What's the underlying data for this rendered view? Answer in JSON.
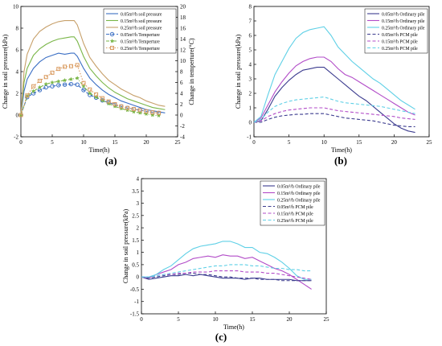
{
  "chart_data": [
    {
      "panel_label": "(a)",
      "type": "line",
      "xlabel": "Time(h)",
      "ylabel": "Change in soil pressure(kPa)",
      "y2label": "Change in temperture(°C)",
      "xlim": [
        0,
        25
      ],
      "ylim": [
        -2,
        10
      ],
      "y2lim": [
        -4,
        20
      ],
      "xticks": [
        0,
        5,
        10,
        15,
        20,
        25
      ],
      "yticks": [
        -2,
        0,
        2,
        4,
        6,
        8,
        10
      ],
      "y2ticks": [
        -4,
        -2,
        0,
        2,
        4,
        6,
        8,
        10,
        12,
        14,
        16,
        18,
        20
      ],
      "legend_position": "top-right",
      "grid": false,
      "series": [
        {
          "name": "0.05m³/h soil pressure",
          "axis": "left",
          "style": "solid",
          "color": "#3b6fc4",
          "x": [
            0,
            0.5,
            1,
            2,
            3,
            4,
            5,
            6,
            7,
            8,
            8.5,
            9,
            10,
            11,
            12,
            13,
            14,
            15,
            16,
            17,
            18,
            19,
            20,
            21,
            22,
            23
          ],
          "y": [
            0,
            2.2,
            3.3,
            4.3,
            4.9,
            5.3,
            5.5,
            5.7,
            5.6,
            5.7,
            5.7,
            5.4,
            4.3,
            3.4,
            2.8,
            2.3,
            1.9,
            1.6,
            1.3,
            1.1,
            0.9,
            0.7,
            0.5,
            0.4,
            0.3,
            0.2
          ]
        },
        {
          "name": "0.15m³/h soil pressure",
          "axis": "left",
          "style": "solid",
          "color": "#7ab648",
          "x": [
            0,
            0.5,
            1,
            2,
            3,
            4,
            5,
            6,
            7,
            8,
            8.5,
            9,
            10,
            11,
            12,
            13,
            14,
            15,
            16,
            17,
            18,
            19,
            20,
            21,
            22,
            23
          ],
          "y": [
            0,
            3.0,
            4.3,
            5.5,
            6.1,
            6.5,
            6.8,
            7.0,
            7.1,
            7.2,
            7.2,
            6.8,
            5.4,
            4.3,
            3.6,
            3.0,
            2.5,
            2.1,
            1.8,
            1.5,
            1.3,
            1.1,
            0.9,
            0.7,
            0.6,
            0.5
          ]
        },
        {
          "name": "0.25m³/h soil pressure",
          "axis": "left",
          "style": "solid",
          "color": "#c7a06a",
          "x": [
            0,
            0.5,
            1,
            2,
            3,
            4,
            5,
            6,
            7,
            8,
            8.5,
            9,
            10,
            11,
            12,
            13,
            14,
            15,
            16,
            17,
            18,
            19,
            20,
            21,
            22,
            23
          ],
          "y": [
            0,
            4.0,
            5.6,
            7.0,
            7.7,
            8.1,
            8.4,
            8.6,
            8.7,
            8.7,
            8.7,
            8.3,
            6.6,
            5.3,
            4.5,
            3.8,
            3.2,
            2.8,
            2.4,
            2.1,
            1.8,
            1.6,
            1.3,
            1.1,
            0.9,
            0.8
          ]
        },
        {
          "name": "0.05m³/h Temperture",
          "axis": "right",
          "style": "dash-circle",
          "color": "#3b6fc4",
          "x": [
            0,
            1,
            2,
            3,
            4,
            5,
            6,
            7,
            8,
            9,
            10,
            11,
            12,
            13,
            14,
            15,
            16,
            17,
            18,
            19,
            20,
            21,
            22
          ],
          "y": [
            0,
            3.3,
            4.0,
            4.6,
            5.1,
            5.3,
            5.5,
            5.6,
            5.7,
            5.6,
            4.6,
            3.7,
            3.2,
            2.7,
            2.3,
            1.9,
            1.6,
            1.3,
            1.1,
            0.9,
            0.7,
            0.5,
            0.4
          ]
        },
        {
          "name": "0.15m³/h Temperture",
          "axis": "right",
          "style": "dash-dot-star",
          "color": "#7ab648",
          "x": [
            0,
            1,
            2,
            3,
            4,
            5,
            6,
            7,
            8,
            9,
            10,
            11,
            12,
            13,
            14,
            15,
            16,
            17,
            18,
            19,
            20,
            21,
            22
          ],
          "y": [
            0,
            3.5,
            4.4,
            5.1,
            5.7,
            6.0,
            6.2,
            6.4,
            6.6,
            6.8,
            5.3,
            4.0,
            3.3,
            2.7,
            2.1,
            1.6,
            1.2,
            0.9,
            0.6,
            0.4,
            0.2,
            0.0,
            -0.1
          ]
        },
        {
          "name": "0.25m³/h Temperture",
          "axis": "right",
          "style": "dot-square",
          "color": "#d99a5e",
          "x": [
            0,
            1,
            2,
            3,
            4,
            5,
            6,
            7,
            8,
            9,
            10,
            11,
            12,
            13,
            14,
            15,
            16,
            17,
            18,
            19,
            20,
            21,
            22
          ],
          "y": [
            0,
            3.6,
            5.3,
            6.3,
            7.0,
            7.8,
            8.5,
            8.9,
            9.0,
            9.2,
            5.9,
            4.7,
            3.8,
            3.1,
            2.5,
            2.0,
            1.6,
            1.3,
            1.1,
            0.9,
            0.7,
            0.5,
            0.4
          ]
        }
      ]
    },
    {
      "panel_label": "(b)",
      "type": "line",
      "xlabel": "Time(h)",
      "ylabel": "Change in soil pressure(kPa)",
      "xlim": [
        0,
        25
      ],
      "ylim": [
        -1,
        8
      ],
      "xticks": [
        0,
        5,
        10,
        15,
        20,
        25
      ],
      "yticks": [
        -1,
        0,
        1,
        2,
        3,
        4,
        5,
        6,
        7,
        8
      ],
      "legend_position": "top-right",
      "grid": false,
      "series": [
        {
          "name": "0.05m³/h Ordinary pile",
          "style": "solid",
          "color": "#3c3c8f",
          "x": [
            0,
            1,
            2,
            3,
            4,
            5,
            6,
            7,
            8,
            9,
            10,
            11,
            12,
            13,
            14,
            15,
            16,
            17,
            18,
            19,
            20,
            21,
            22,
            23
          ],
          "y": [
            0,
            0.1,
            0.9,
            1.8,
            2.4,
            2.9,
            3.3,
            3.6,
            3.7,
            3.8,
            3.8,
            3.4,
            3.0,
            2.6,
            2.2,
            1.8,
            1.5,
            1.1,
            0.7,
            0.3,
            -0.1,
            -0.4,
            -0.6,
            -0.7
          ]
        },
        {
          "name": "0.15m³/h Ordinary pile",
          "style": "solid",
          "color": "#b24cc8",
          "x": [
            0,
            1,
            2,
            3,
            4,
            5,
            6,
            7,
            8,
            9,
            10,
            11,
            12,
            13,
            14,
            15,
            16,
            17,
            18,
            19,
            20,
            21,
            22,
            23
          ],
          "y": [
            0,
            0.3,
            1.2,
            2.1,
            2.8,
            3.4,
            3.9,
            4.2,
            4.4,
            4.5,
            4.5,
            4.2,
            3.7,
            3.3,
            3.1,
            2.8,
            2.5,
            2.2,
            1.9,
            1.6,
            1.3,
            1.0,
            0.7,
            0.5
          ]
        },
        {
          "name": "0.25m³/h Ordinary pile",
          "style": "solid",
          "color": "#5fd0e6",
          "x": [
            0,
            1,
            2,
            3,
            4,
            5,
            6,
            7,
            8,
            9,
            10,
            11,
            12,
            13,
            14,
            15,
            16,
            17,
            18,
            19,
            20,
            21,
            22,
            23
          ],
          "y": [
            0,
            0.4,
            1.9,
            3.3,
            4.2,
            5.1,
            5.8,
            6.2,
            6.4,
            6.5,
            6.6,
            6.0,
            5.2,
            4.7,
            4.2,
            3.8,
            3.4,
            3.0,
            2.7,
            2.3,
            1.9,
            1.5,
            1.2,
            0.9
          ]
        },
        {
          "name": "0.05m³/h PCM pile",
          "style": "dashed",
          "color": "#3c3c8f",
          "x": [
            0,
            1,
            2,
            3,
            4,
            5,
            6,
            7,
            8,
            9,
            10,
            11,
            12,
            13,
            14,
            15,
            16,
            17,
            18,
            19,
            20,
            21,
            22,
            23
          ],
          "y": [
            0,
            0.0,
            0.2,
            0.35,
            0.45,
            0.5,
            0.55,
            0.55,
            0.6,
            0.6,
            0.6,
            0.5,
            0.4,
            0.3,
            0.25,
            0.2,
            0.15,
            0.1,
            0.0,
            -0.1,
            -0.2,
            -0.25,
            -0.3,
            -0.3
          ]
        },
        {
          "name": "0.15m³/h PCM pile",
          "style": "dashed",
          "color": "#b24cc8",
          "x": [
            0,
            1,
            2,
            3,
            4,
            5,
            6,
            7,
            8,
            9,
            10,
            11,
            12,
            13,
            14,
            15,
            16,
            17,
            18,
            19,
            20,
            21,
            22,
            23
          ],
          "y": [
            0,
            0.1,
            0.4,
            0.6,
            0.75,
            0.85,
            0.9,
            0.95,
            1.0,
            1.0,
            1.0,
            0.9,
            0.8,
            0.75,
            0.7,
            0.65,
            0.6,
            0.55,
            0.5,
            0.45,
            0.4,
            0.3,
            0.25,
            0.2
          ]
        },
        {
          "name": "0.25m³/h PCM pile",
          "style": "dashed",
          "color": "#5fd0e6",
          "x": [
            0,
            1,
            2,
            3,
            4,
            5,
            6,
            7,
            8,
            9,
            10,
            11,
            12,
            13,
            14,
            15,
            16,
            17,
            18,
            19,
            20,
            21,
            22,
            23
          ],
          "y": [
            0,
            0.2,
            0.7,
            1.1,
            1.3,
            1.45,
            1.55,
            1.6,
            1.65,
            1.7,
            1.75,
            1.6,
            1.45,
            1.35,
            1.3,
            1.25,
            1.2,
            1.15,
            1.1,
            1.0,
            0.9,
            0.8,
            0.7,
            0.6
          ]
        }
      ]
    },
    {
      "panel_label": "(c)",
      "type": "line",
      "xlabel": "Time(h)",
      "ylabel": "Change in soil pressure(kPa)",
      "xlim": [
        0,
        25
      ],
      "ylim": [
        -1.5,
        4
      ],
      "xticks": [
        0,
        5,
        10,
        15,
        20,
        25
      ],
      "yticks": [
        -1.5,
        -1,
        -0.5,
        0,
        0.5,
        1,
        1.5,
        2,
        2.5,
        3,
        3.5,
        4
      ],
      "legend_position": "top-right",
      "grid": false,
      "series": [
        {
          "name": "0.05m³/h Ordinary pile",
          "style": "solid",
          "color": "#3c3c8f",
          "x": [
            0,
            1,
            2,
            3,
            4,
            5,
            6,
            7,
            8,
            9,
            10,
            11,
            12,
            13,
            14,
            15,
            16,
            17,
            18,
            19,
            20,
            21,
            22,
            23
          ],
          "y": [
            0,
            -0.1,
            -0.05,
            0,
            0.05,
            0.05,
            0.1,
            0.05,
            0.1,
            0.05,
            0.0,
            -0.05,
            -0.05,
            -0.05,
            -0.1,
            -0.05,
            -0.05,
            -0.1,
            -0.1,
            -0.1,
            -0.1,
            -0.15,
            -0.15,
            -0.15
          ]
        },
        {
          "name": "0.15m³/h Ordinary pile",
          "style": "solid",
          "color": "#b24cc8",
          "x": [
            0,
            1,
            2,
            3,
            4,
            5,
            6,
            7,
            8,
            9,
            10,
            11,
            12,
            13,
            14,
            15,
            16,
            17,
            18,
            19,
            20,
            21,
            22,
            23
          ],
          "y": [
            0,
            -0.05,
            0.1,
            0.2,
            0.3,
            0.5,
            0.6,
            0.75,
            0.8,
            0.85,
            0.8,
            0.9,
            0.85,
            0.85,
            0.75,
            0.8,
            0.65,
            0.5,
            0.35,
            0.25,
            0.1,
            -0.1,
            -0.3,
            -0.5
          ]
        },
        {
          "name": "0.25m³/h Ordinary pile",
          "style": "solid",
          "color": "#5fd0e6",
          "x": [
            0,
            1,
            2,
            3,
            4,
            5,
            6,
            7,
            8,
            9,
            10,
            11,
            12,
            13,
            14,
            15,
            16,
            17,
            18,
            19,
            20,
            21,
            22,
            23
          ],
          "y": [
            0,
            0,
            0.1,
            0.3,
            0.45,
            0.7,
            0.95,
            1.15,
            1.25,
            1.3,
            1.35,
            1.45,
            1.45,
            1.35,
            1.2,
            1.2,
            1.0,
            0.95,
            0.8,
            0.6,
            0.35,
            0.05,
            -0.1,
            -0.1
          ]
        },
        {
          "name": "0.05m³/h PCM pile",
          "style": "dashed",
          "color": "#3c3c8f",
          "x": [
            0,
            1,
            2,
            3,
            4,
            5,
            6,
            7,
            8,
            9,
            10,
            11,
            12,
            13,
            14,
            15,
            16,
            17,
            18,
            19,
            20,
            21,
            22,
            23
          ],
          "y": [
            0,
            -0.05,
            0.0,
            0.05,
            0.1,
            0.1,
            0.15,
            0.15,
            0.1,
            0.1,
            0.05,
            0.0,
            0.0,
            -0.05,
            -0.05,
            -0.05,
            -0.1,
            -0.1,
            -0.1,
            -0.15,
            -0.15,
            -0.15,
            -0.15,
            -0.15
          ]
        },
        {
          "name": "0.15m³/h PCM pile",
          "style": "dashed",
          "color": "#b24cc8",
          "x": [
            0,
            1,
            2,
            3,
            4,
            5,
            6,
            7,
            8,
            9,
            10,
            11,
            12,
            13,
            14,
            15,
            16,
            17,
            18,
            19,
            20,
            21,
            22,
            23
          ],
          "y": [
            0,
            0.0,
            0.05,
            0.1,
            0.1,
            0.15,
            0.15,
            0.2,
            0.2,
            0.2,
            0.25,
            0.25,
            0.25,
            0.25,
            0.2,
            0.2,
            0.2,
            0.15,
            0.15,
            0.1,
            0.05,
            0.0,
            -0.05,
            -0.1
          ]
        },
        {
          "name": "0.25m³/h PCM pile",
          "style": "dashed",
          "color": "#5fd0e6",
          "x": [
            0,
            1,
            2,
            3,
            4,
            5,
            6,
            7,
            8,
            9,
            10,
            11,
            12,
            13,
            14,
            15,
            16,
            17,
            18,
            19,
            20,
            21,
            22,
            23
          ],
          "y": [
            0,
            0.0,
            0.05,
            0.1,
            0.15,
            0.2,
            0.25,
            0.3,
            0.35,
            0.4,
            0.45,
            0.45,
            0.5,
            0.5,
            0.5,
            0.45,
            0.45,
            0.4,
            0.35,
            0.35,
            0.3,
            0.3,
            0.25,
            0.25
          ]
        }
      ]
    }
  ]
}
